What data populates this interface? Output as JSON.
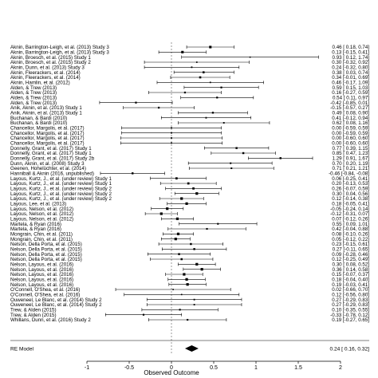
{
  "chart_data": {
    "type": "forest",
    "xlabel": "Observed Outcome",
    "xlim": [
      -1,
      2
    ],
    "xticks": [
      -1,
      -0.5,
      0,
      0.5,
      1,
      1.5,
      2
    ],
    "xtick_labels": [
      "-1",
      "-0.5",
      "0",
      "0.5",
      "1",
      "1.5",
      "2"
    ],
    "reference_line": 0,
    "studies": [
      {
        "label": "Aknin, Barrington-Leigh, et al. (2013) Study 3",
        "est": 0.46,
        "lo": 0.18,
        "hi": 0.74,
        "text": "0.46 [ 0.18, 0.74]"
      },
      {
        "label": "Aknin, Barrington-Leigh, et al. (2013) Study 3",
        "est": 0.13,
        "lo": -0.15,
        "hi": 0.41,
        "text": "0.13 [-0.15, 0.41]"
      },
      {
        "label": "Aknin, Broesch, et al. (2015) Study 1",
        "est": 0.93,
        "lo": 0.12,
        "hi": 1.74,
        "text": "0.93 [ 0.12, 1.74]"
      },
      {
        "label": "Aknin, Broesch, et al. (2015) Study 2",
        "est": 0.3,
        "lo": -0.32,
        "hi": 0.92,
        "text": "0.30 [-0.32, 0.92]"
      },
      {
        "label": "Aknin, Dunn, et al. (2013) Study 3",
        "est": 0.24,
        "lo": -0.32,
        "hi": 0.8,
        "text": "0.24 [-0.32, 0.80]"
      },
      {
        "label": "Aknin, Fleerackers, et al. (2014)",
        "est": 0.38,
        "lo": 0.03,
        "hi": 0.74,
        "text": "0.38 [ 0.03, 0.74]"
      },
      {
        "label": "Aknin, Fleerackers, et al. (2014)",
        "est": 0.34,
        "lo": -0.01,
        "hi": 0.69,
        "text": "0.34 [-0.01, 0.69]"
      },
      {
        "label": "Aknin, Hamlin, et al. (2012)",
        "est": 0.46,
        "lo": -0.17,
        "hi": 1.09,
        "text": "0.46 [-0.17, 1.09]"
      },
      {
        "label": "Alden, & Trew (2013)",
        "est": 0.59,
        "lo": 0.15,
        "hi": 1.03,
        "text": "0.59 [ 0.15, 1.03]"
      },
      {
        "label": "Alden, & Trew (2013)",
        "est": 0.16,
        "lo": -0.27,
        "hi": 0.59,
        "text": "0.16 [-0.27, 0.59]"
      },
      {
        "label": "Alden, & Trew (2013)",
        "est": 0.54,
        "lo": 0.11,
        "hi": 0.97,
        "text": "0.54 [ 0.11, 0.97]"
      },
      {
        "label": "Alden, & Trew (2013)",
        "est": -0.42,
        "lo": -0.85,
        "hi": 0.01,
        "text": "-0.42 [-0.85, 0.01]"
      },
      {
        "label": "Anik, Aknin, et al. (2013) Study 1",
        "est": -0.15,
        "lo": -0.57,
        "hi": 0.27,
        "text": "-0.15 [-0.57, 0.27]"
      },
      {
        "label": "Anik, Aknin, et al. (2013) Study 1",
        "est": 0.49,
        "lo": 0.08,
        "hi": 0.9,
        "text": "0.49 [ 0.08, 0.90]"
      },
      {
        "label": "Buchanan, & Bardi (2010)",
        "est": 0.41,
        "lo": -0.12,
        "hi": 0.94,
        "text": "0.41 [-0.12, 0.94]"
      },
      {
        "label": "Buchanan, & Bardi (2010)",
        "est": 0.62,
        "lo": 0.08,
        "hi": 1.16,
        "text": "0.62 [ 0.08, 1.16]"
      },
      {
        "label": "Chancellor, Margolis, et al. (2017)",
        "est": 0.0,
        "lo": -0.59,
        "hi": 0.59,
        "text": "0.00 [-0.59, 0.59]"
      },
      {
        "label": "Chancellor, Margolis, et al. (2017)",
        "est": 0.0,
        "lo": -0.59,
        "hi": 0.59,
        "text": "0.00 [-0.59, 0.59]"
      },
      {
        "label": "Chancellor, Margolis, et al. (2017)",
        "est": 0.0,
        "lo": -0.6,
        "hi": 0.6,
        "text": "0.00 [-0.60, 0.60]"
      },
      {
        "label": "Chancellor, Margolis, et al. (2017)",
        "est": 0.0,
        "lo": -0.6,
        "hi": 0.6,
        "text": "0.00 [-0.60, 0.60]"
      },
      {
        "label": "Donnelly, Grant, et al. (2017) Study 1",
        "est": 0.77,
        "lo": 0.39,
        "hi": 1.15,
        "text": "0.77 [ 0.39, 1.15]"
      },
      {
        "label": "Donnelly, Grant, et al. (2017) Study 1",
        "est": 0.85,
        "lo": 0.47,
        "hi": 1.23,
        "text": "0.85 [ 0.47, 1.23]"
      },
      {
        "label": "Donnelly, Grant, et al. (2017) Study 2b",
        "est": 1.29,
        "lo": 0.91,
        "hi": 1.67,
        "text": "1.29 [ 0.91, 1.67]"
      },
      {
        "label": "Dunn, Aknin, et al. (2008) Study 3",
        "est": 0.7,
        "lo": 0.2,
        "hi": 1.19,
        "text": "0.70 [ 0.20, 1.19]"
      },
      {
        "label": "Geenen, Hohelüchter, et al. (2014)",
        "est": 0.71,
        "lo": 0.21,
        "hi": 1.21,
        "text": "0.71 [ 0.21, 1.21]"
      },
      {
        "label": "Hanniball & Aknin (2016, unpublished)",
        "est": -0.46,
        "lo": -0.84,
        "hi": -0.08,
        "text": "-0.46 [-0.84, -0.08]"
      },
      {
        "label": "Layous, Kurtz, J., et al. (under review) Study 1",
        "est": 0.06,
        "lo": -0.25,
        "hi": 0.41,
        "text": "0.06 [-0.25, 0.41]"
      },
      {
        "label": "Layous, Kurtz, J., et al. (under review) Study 1",
        "est": 0.2,
        "lo": -0.13,
        "hi": 0.53,
        "text": "0.20 [-0.13, 0.53]"
      },
      {
        "label": "Layous, Kurtz, J., et al. (under review) Study 2",
        "est": 0.26,
        "lo": -0.07,
        "hi": 0.59,
        "text": "0.26 [-0.07, 0.59]"
      },
      {
        "label": "Layous, Kurtz, J., et al. (under review) Study 2",
        "est": 0.3,
        "lo": 0.04,
        "hi": 0.56,
        "text": "0.30 [ 0.04, 0.56]"
      },
      {
        "label": "Layous, Kurtz, J., et al. (under review) Study 2",
        "est": 0.12,
        "lo": -0.14,
        "hi": 0.38,
        "text": "0.12 [-0.14, 0.38]"
      },
      {
        "label": "Layous, Lee, et al. (2013)",
        "est": 0.18,
        "lo": -0.05,
        "hi": 0.41,
        "text": "0.18 [-0.05, 0.41]"
      },
      {
        "label": "Layous, Nelson, et al. (2012)",
        "est": -0.05,
        "lo": -0.24,
        "hi": 0.14,
        "text": "-0.05 [-0.24, 0.14]"
      },
      {
        "label": "Layous, Nelson, et al. (2012)",
        "est": -0.12,
        "lo": -0.31,
        "hi": 0.07,
        "text": "-0.12 [-0.31, 0.07]"
      },
      {
        "label": "Layous, Nelson, et al. (2012)",
        "est": 0.07,
        "lo": -0.12,
        "hi": 0.26,
        "text": "0.07 [-0.12, 0.26]"
      },
      {
        "label": "Martela, & Ryan (2016)",
        "est": 0.55,
        "lo": 0.09,
        "hi": 1.01,
        "text": "0.55 [ 0.09, 1.01]"
      },
      {
        "label": "Martela, & Ryan (2016)",
        "est": 0.42,
        "lo": -0.04,
        "hi": 0.88,
        "text": "0.42 [-0.04, 0.88]"
      },
      {
        "label": "Mongrain, Chin, et al. (2011)",
        "est": 0.08,
        "lo": -0.1,
        "hi": 0.26,
        "text": "0.08 [-0.10, 0.26]"
      },
      {
        "label": "Mongrain, Chin, et al. (2011)",
        "est": 0.05,
        "lo": -0.12,
        "hi": 0.22,
        "text": "0.05 [-0.12, 0.22]"
      },
      {
        "label": "Nelson, Della Porta, et al. (2015)",
        "est": 0.23,
        "lo": -0.15,
        "hi": 0.61,
        "text": "0.23 [-0.15, 0.61]"
      },
      {
        "label": "Nelson, Della Porta, et al. (2015)",
        "est": 0.27,
        "lo": -0.11,
        "hi": 0.65,
        "text": "0.27 [-0.11, 0.65]"
      },
      {
        "label": "Nelson, Della Porta, et al. (2015)",
        "est": 0.09,
        "lo": -0.28,
        "hi": 0.46,
        "text": "0.09 [-0.28, 0.46]"
      },
      {
        "label": "Nelson, Della Porta, et al. (2015)",
        "est": 0.12,
        "lo": -0.25,
        "hi": 0.49,
        "text": "0.12 [-0.25, 0.49]"
      },
      {
        "label": "Nelson, Layous, et al. (2016)",
        "est": 0.3,
        "lo": 0.08,
        "hi": 0.52,
        "text": "0.30 [ 0.08, 0.52]"
      },
      {
        "label": "Nelson, Layous, et al. (2016)",
        "est": 0.36,
        "lo": 0.14,
        "hi": 0.58,
        "text": "0.36 [ 0.14, 0.58]"
      },
      {
        "label": "Nelson, Layous, et al. (2016)",
        "est": 0.15,
        "lo": -0.07,
        "hi": 0.37,
        "text": "0.15 [-0.07, 0.37]"
      },
      {
        "label": "Nelson, Layous, et al. (2016)",
        "est": 0.18,
        "lo": -0.04,
        "hi": 0.4,
        "text": "0.18 [-0.04, 0.40]"
      },
      {
        "label": "Nelson, Layous, et al. (2016)",
        "est": 0.19,
        "lo": -0.03,
        "hi": 0.41,
        "text": "0.19 [-0.03, 0.41]"
      },
      {
        "label": "O'Connell, O'Shea, et al. (2016)",
        "est": 0.02,
        "lo": -0.66,
        "hi": 0.7,
        "text": "0.02 [-0.66, 0.70]"
      },
      {
        "label": "O'Connell, O'Shea, et al. (2016)",
        "est": 0.12,
        "lo": -0.56,
        "hi": 0.8,
        "text": "0.12 [-0.56, 0.80]"
      },
      {
        "label": "Ouweneel, Le Blanc, et al. (2014) Study 2",
        "est": 0.27,
        "lo": -0.29,
        "hi": 0.83,
        "text": "0.27 [-0.29, 0.83]"
      },
      {
        "label": "Ouweneel, Le Blanc, et al. (2014) Study 2",
        "est": 0.27,
        "lo": -0.29,
        "hi": 0.83,
        "text": "0.27 [-0.29, 0.83]"
      },
      {
        "label": "Trew, & Alden (2015)",
        "est": 0.1,
        "lo": -0.35,
        "hi": 0.55,
        "text": "0.10 [-0.35, 0.55]"
      },
      {
        "label": "Trew, & Alden (2015)",
        "est": -0.33,
        "lo": -0.78,
        "hi": 0.12,
        "text": "-0.33 [-0.78, 0.12]"
      },
      {
        "label": "Whillans, Dunn, et al. (2016) Study 2",
        "est": 0.19,
        "lo": -0.27,
        "hi": 0.65,
        "text": "0.19 [-0.27, 0.65]"
      }
    ],
    "summary": {
      "label": "RE Model",
      "est": 0.24,
      "lo": 0.16,
      "hi": 0.32,
      "text": "0.24 [ 0.16, 0.32]"
    }
  }
}
